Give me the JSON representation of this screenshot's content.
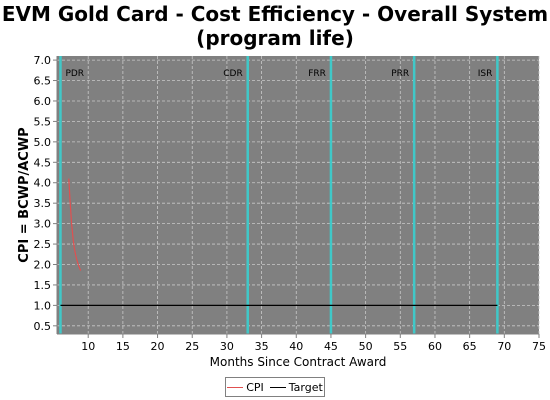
{
  "chart_data": {
    "type": "line",
    "title_line1": "EVM Gold Card - Cost Efficiency - Overall System",
    "title_line2": "(program life)",
    "xlabel": "Months Since Contract Award",
    "ylabel": "CPI = BCWP/ACWP",
    "xlim": [
      5.5,
      75
    ],
    "ylim": [
      0.3,
      7.1
    ],
    "x_ticks": [
      10,
      15,
      20,
      25,
      30,
      35,
      40,
      45,
      50,
      55,
      60,
      65,
      70,
      75
    ],
    "y_ticks": [
      "0.5",
      "1.0",
      "1.5",
      "2.0",
      "2.5",
      "3.0",
      "3.5",
      "4.0",
      "4.5",
      "5.0",
      "5.5",
      "6.0",
      "6.5",
      "7.0"
    ],
    "grid": true,
    "legend_position": "bottom-center",
    "plot_background": "#808080",
    "milestone_color": "#40c8c8",
    "milestones": [
      {
        "label": "PDR",
        "x": 6
      },
      {
        "label": "CDR",
        "x": 33
      },
      {
        "label": "FRR",
        "x": 45
      },
      {
        "label": "PRR",
        "x": 57
      },
      {
        "label": "ISR",
        "x": 69
      }
    ],
    "series": [
      {
        "name": "CPI",
        "color": "#e05050",
        "x": [
          7.2,
          7.4,
          7.6,
          7.8,
          8.0,
          8.3,
          8.6,
          8.9
        ],
        "y": [
          4.1,
          3.5,
          3.0,
          2.65,
          2.4,
          2.15,
          1.98,
          1.85
        ]
      },
      {
        "name": "Target",
        "color": "#000000",
        "x": [
          6,
          69
        ],
        "y": [
          1.0,
          1.0
        ]
      }
    ]
  }
}
